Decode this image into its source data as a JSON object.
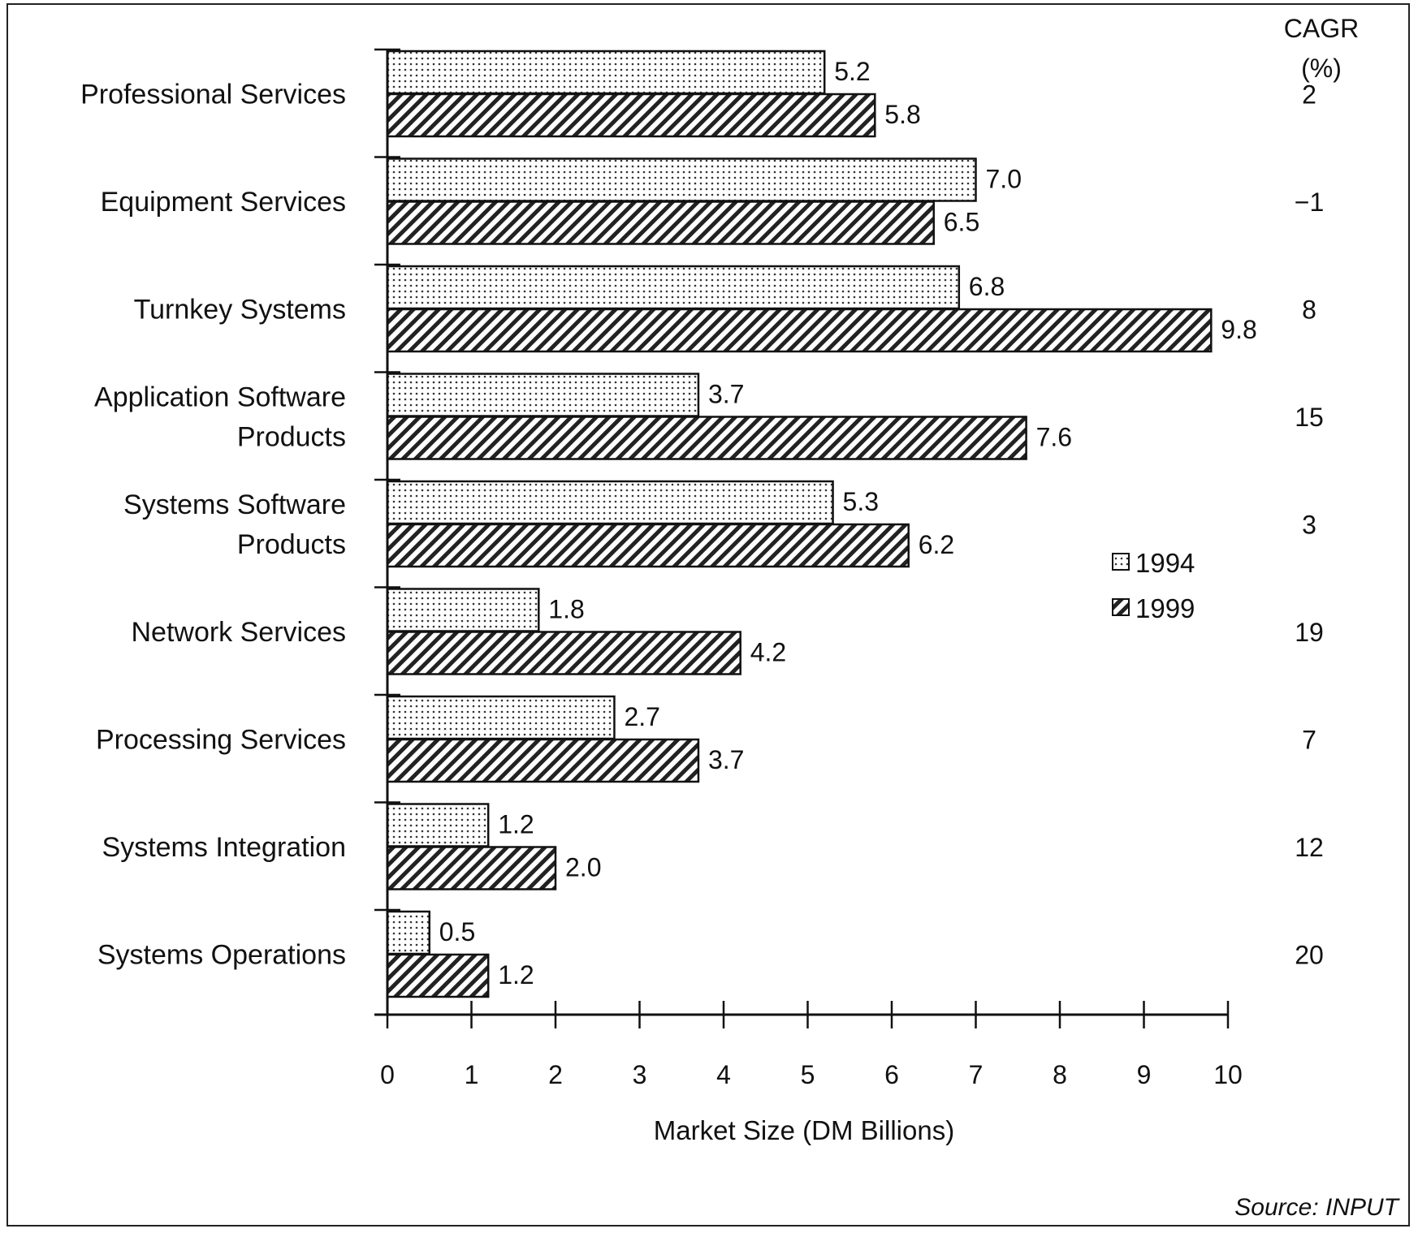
{
  "chart_data": {
    "type": "bar",
    "orientation": "horizontal",
    "categories": [
      [
        "Professional Services"
      ],
      [
        "Equipment Services"
      ],
      [
        "Turnkey Systems"
      ],
      [
        "Application Software",
        "Products"
      ],
      [
        "Systems Software",
        "Products"
      ],
      [
        "Network Services"
      ],
      [
        "Processing Services"
      ],
      [
        "Systems Integration"
      ],
      [
        "Systems Operations"
      ]
    ],
    "series": [
      {
        "name": "1994",
        "pattern": "dots",
        "values": [
          5.2,
          7.0,
          6.8,
          3.7,
          5.3,
          1.8,
          2.7,
          1.2,
          0.5
        ],
        "labels": [
          "5.2",
          "7.0",
          "6.8",
          "3.7",
          "5.3",
          "1.8",
          "2.7",
          "1.2",
          "0.5"
        ]
      },
      {
        "name": "1999",
        "pattern": "hatch",
        "values": [
          5.8,
          6.5,
          9.8,
          7.6,
          6.2,
          4.2,
          3.7,
          2.0,
          1.2
        ],
        "labels": [
          "5.8",
          "6.5",
          "9.8",
          "7.6",
          "6.2",
          "4.2",
          "3.7",
          "2.0",
          "1.2"
        ]
      }
    ],
    "cagr_header": [
      "CAGR",
      "(%)"
    ],
    "cagr": [
      "2",
      "−1",
      "8",
      "15",
      "3",
      "19",
      "7",
      "12",
      "20"
    ],
    "xlabel": "Market Size (DM Billions)",
    "xlim": [
      0,
      10
    ],
    "xticks": [
      "0",
      "1",
      "2",
      "3",
      "4",
      "5",
      "6",
      "7",
      "8",
      "9",
      "10"
    ],
    "grid": false,
    "legend_position": "right",
    "source": "Source: INPUT"
  }
}
